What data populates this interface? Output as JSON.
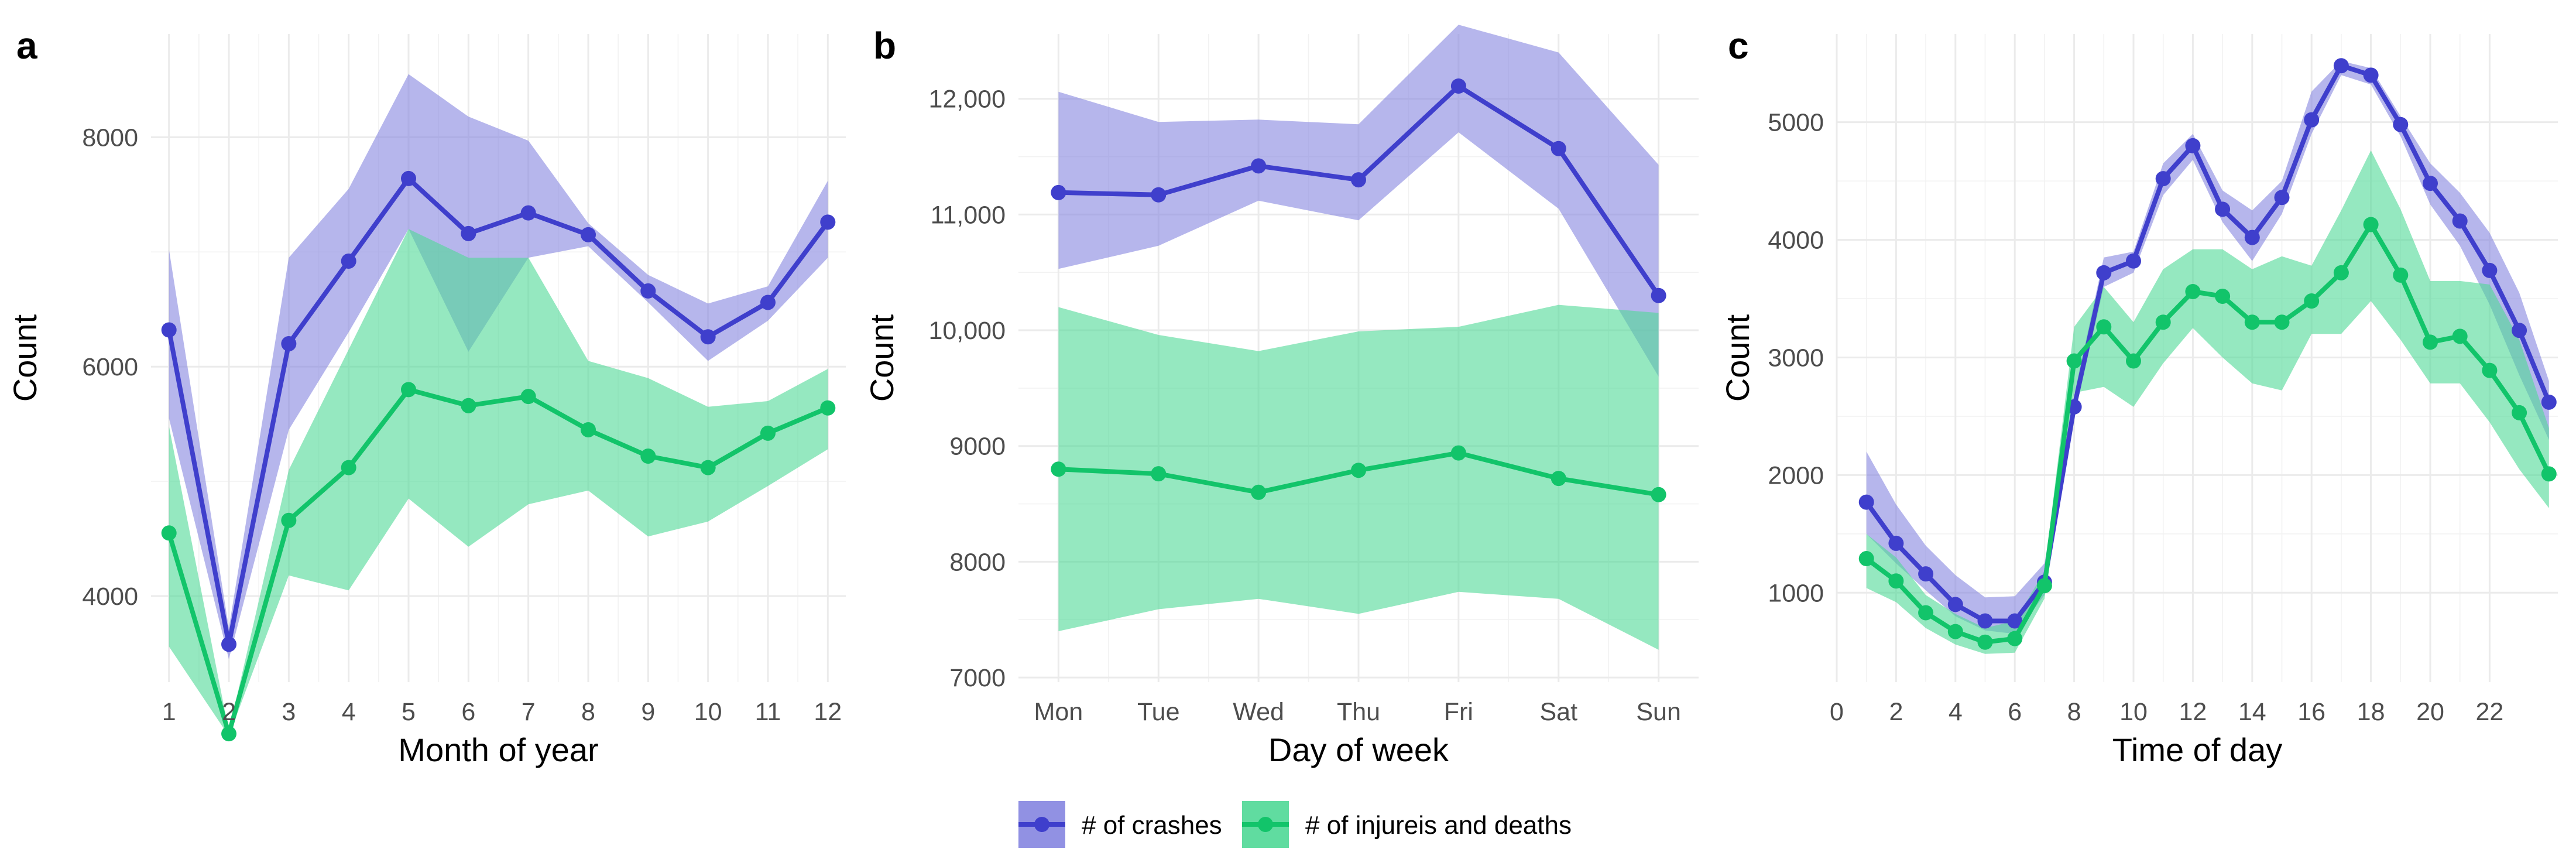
{
  "chart_data": [
    {
      "panel": "a",
      "type": "line",
      "xlabel": "Month of year",
      "ylabel": "Count",
      "xlim": [
        0.7,
        12.3
      ],
      "ylim": [
        3250,
        8900
      ],
      "x_ticks": [
        1,
        2,
        3,
        4,
        5,
        6,
        7,
        8,
        9,
        10,
        11,
        12
      ],
      "x_tick_labels": [
        "1",
        "2",
        "3",
        "4",
        "5",
        "6",
        "7",
        "8",
        "9",
        "10",
        "11",
        "12"
      ],
      "y_ticks": [
        4000,
        6000,
        8000
      ],
      "y_tick_labels": [
        "4000",
        "6000",
        "8000"
      ],
      "x": [
        1,
        2,
        3,
        4,
        5,
        6,
        7,
        8,
        9,
        10,
        11,
        12
      ],
      "series": [
        {
          "name": "# of crashes",
          "values": [
            6320,
            3580,
            6200,
            6920,
            7640,
            7160,
            7340,
            7150,
            6660,
            6260,
            6560,
            7260
          ],
          "lower": [
            5550,
            3450,
            5450,
            6300,
            7200,
            6130,
            6950,
            7050,
            6560,
            6050,
            6400,
            6950
          ],
          "upper": [
            7020,
            3720,
            6950,
            7550,
            8550,
            8180,
            7970,
            7250,
            6800,
            6550,
            6700,
            7620
          ]
        },
        {
          "name": "# of injureis and deaths",
          "values": [
            4550,
            2800,
            4660,
            5120,
            5800,
            5660,
            5740,
            5450,
            5220,
            5120,
            5420,
            5640
          ],
          "lower": [
            3560,
            2780,
            4180,
            4050,
            4850,
            4430,
            4800,
            4920,
            4520,
            4650,
            4960,
            5280
          ],
          "upper": [
            5480,
            2820,
            5100,
            6150,
            7200,
            6950,
            6950,
            6050,
            5900,
            5650,
            5700,
            5980
          ]
        }
      ]
    },
    {
      "panel": "b",
      "type": "line",
      "xlabel": "Day of week",
      "ylabel": "Count",
      "xlim": [
        0.6,
        7.4
      ],
      "ylim": [
        6960,
        12560
      ],
      "categories": [
        "Mon",
        "Tue",
        "Wed",
        "Thu",
        "Fri",
        "Sat",
        "Sun"
      ],
      "y_ticks": [
        7000,
        8000,
        9000,
        10000,
        11000,
        12000
      ],
      "y_tick_labels": [
        "7000",
        "8000",
        "9000",
        "10,000",
        "11,000",
        "12,000"
      ],
      "series": [
        {
          "name": "# of crashes",
          "values": [
            11190,
            11170,
            11420,
            11300,
            12110,
            11570,
            10300
          ],
          "lower": [
            10530,
            10730,
            11120,
            10950,
            11710,
            11050,
            9600
          ],
          "upper": [
            12060,
            11800,
            11820,
            11780,
            12640,
            12400,
            11430
          ]
        },
        {
          "name": "# of injureis and deaths",
          "values": [
            8800,
            8760,
            8600,
            8790,
            8940,
            8720,
            8580
          ],
          "lower": [
            7400,
            7590,
            7680,
            7550,
            7740,
            7680,
            7240
          ],
          "upper": [
            10200,
            9960,
            9820,
            9990,
            10030,
            10220,
            10150
          ]
        }
      ]
    },
    {
      "panel": "c",
      "type": "line",
      "xlabel": "Time of day",
      "ylabel": "Count",
      "xlim": [
        0,
        24.3
      ],
      "ylim": [
        240,
        5750
      ],
      "x_ticks": [
        0,
        2,
        4,
        6,
        8,
        10,
        12,
        14,
        16,
        18,
        20,
        22
      ],
      "x_tick_labels": [
        "0",
        "2",
        "4",
        "6",
        "8",
        "10",
        "12",
        "14",
        "16",
        "18",
        "20",
        "22"
      ],
      "y_ticks": [
        1000,
        2000,
        3000,
        4000,
        5000
      ],
      "y_tick_labels": [
        "1000",
        "2000",
        "3000",
        "4000",
        "5000"
      ],
      "x": [
        1,
        2,
        3,
        4,
        5,
        6,
        7,
        8,
        9,
        10,
        11,
        12,
        13,
        14,
        15,
        16,
        17,
        18,
        19,
        20,
        21,
        22,
        23,
        24
      ],
      "series": [
        {
          "name": "# of crashes",
          "values": [
            1770,
            1420,
            1160,
            900,
            760,
            760,
            1090,
            2580,
            3720,
            3820,
            4520,
            4800,
            4260,
            4020,
            4360,
            5020,
            5480,
            5400,
            4980,
            4480,
            4160,
            3740,
            3230,
            2620
          ],
          "lower": [
            1500,
            1250,
            1020,
            800,
            680,
            650,
            980,
            2500,
            3600,
            3720,
            4380,
            4680,
            4150,
            3820,
            4220,
            4900,
            5400,
            5320,
            4880,
            4300,
            3950,
            3450,
            2850,
            2300
          ],
          "upper": [
            2200,
            1750,
            1400,
            1150,
            960,
            970,
            1250,
            2680,
            3850,
            3900,
            4650,
            4900,
            4420,
            4250,
            4500,
            5260,
            5520,
            5460,
            5050,
            4650,
            4400,
            4060,
            3550,
            2800
          ]
        },
        {
          "name": "# of injureis and deaths",
          "values": [
            1290,
            1100,
            830,
            670,
            580,
            610,
            1060,
            2970,
            3260,
            2970,
            3300,
            3560,
            3520,
            3300,
            3300,
            3480,
            3720,
            4130,
            3700,
            3130,
            3180,
            2890,
            2530,
            2010
          ],
          "lower": [
            1040,
            920,
            700,
            560,
            480,
            490,
            950,
            2700,
            2750,
            2580,
            2950,
            3250,
            3000,
            2780,
            2720,
            3200,
            3200,
            3480,
            3150,
            2780,
            2780,
            2450,
            2050,
            1720
          ],
          "upper": [
            1500,
            1300,
            980,
            820,
            700,
            760,
            1180,
            3260,
            3600,
            3300,
            3750,
            3920,
            3920,
            3750,
            3860,
            3780,
            4250,
            4760,
            4260,
            3650,
            3650,
            3620,
            3150,
            2400
          ]
        }
      ]
    }
  ],
  "legend": {
    "items": [
      {
        "label": "# of crashes",
        "color": "#3f3fcc"
      },
      {
        "label": "# of injureis and deaths",
        "color": "#12c46a"
      }
    ]
  },
  "colors": {
    "crashes_line": "#3f3fcc",
    "crashes_band": "#8585e0",
    "injuries_line": "#12c46a",
    "injuries_band": "#4fd896",
    "grid": "#ebebeb",
    "tick_text": "#4d4d4d"
  }
}
